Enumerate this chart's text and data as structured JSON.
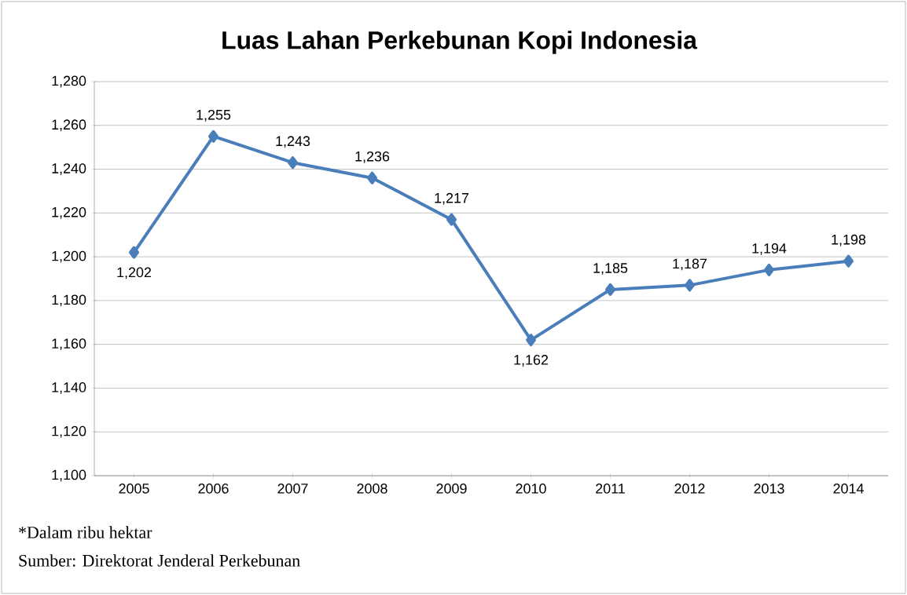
{
  "chart_data": {
    "type": "line",
    "title": "Luas Lahan Perkebunan Kopi Indonesia",
    "categories": [
      "2005",
      "2006",
      "2007",
      "2008",
      "2009",
      "2010",
      "2011",
      "2012",
      "2013",
      "2014"
    ],
    "series": [
      {
        "color": "#4a7ebb",
        "values": [
          1202,
          1255,
          1243,
          1236,
          1217,
          1162,
          1185,
          1187,
          1194,
          1198
        ],
        "value_labels": [
          "1,202",
          "1,255",
          "1,243",
          "1,236",
          "1,217",
          "1,162",
          "1,185",
          "1,187",
          "1,194",
          "1,198"
        ]
      }
    ],
    "ylim": [
      1100,
      1280
    ],
    "yticks": [
      {
        "value": 1100,
        "label": "1,100"
      },
      {
        "value": 1120,
        "label": "1,120"
      },
      {
        "value": 1140,
        "label": "1,140"
      },
      {
        "value": 1160,
        "label": "1,160"
      },
      {
        "value": 1180,
        "label": "1,180"
      },
      {
        "value": 1200,
        "label": "1,200"
      },
      {
        "value": 1220,
        "label": "1,220"
      },
      {
        "value": 1240,
        "label": "1,240"
      },
      {
        "value": 1260,
        "label": "1,260"
      },
      {
        "value": 1280,
        "label": "1,280"
      }
    ],
    "grid": "y",
    "marker": "diamond",
    "line_style": "solid",
    "annotations": [
      "*Dalam ribu hektar",
      "Sumber: Direktorat Jenderal Perkebunan"
    ]
  }
}
